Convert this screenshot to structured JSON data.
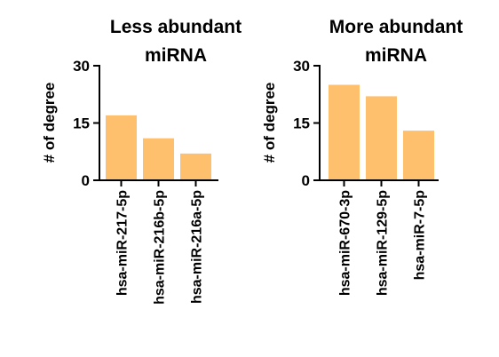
{
  "chart_data": [
    {
      "type": "bar",
      "title_lines": [
        "Less abundant",
        "miRNA"
      ],
      "ylabel": "# of degree",
      "xlabel": "",
      "ylim": [
        0,
        30
      ],
      "yticks": [
        0,
        15,
        30
      ],
      "categories": [
        "hsa-miR-217-5p",
        "hsa-miR-216b-5p",
        "hsa-miR-216a-5p"
      ],
      "values": [
        17,
        11,
        7
      ],
      "bar_color": "#FFC06E",
      "grid": false
    },
    {
      "type": "bar",
      "title_lines": [
        "More abundant",
        "miRNA"
      ],
      "ylabel": "# of degree",
      "xlabel": "",
      "ylim": [
        0,
        30
      ],
      "yticks": [
        0,
        15,
        30
      ],
      "categories": [
        "hsa-miR-670-3p",
        "hsa-miR-129-5p",
        "hsa-miR-7-5p"
      ],
      "values": [
        25,
        22,
        13
      ],
      "bar_color": "#FFC06E",
      "grid": false
    }
  ]
}
